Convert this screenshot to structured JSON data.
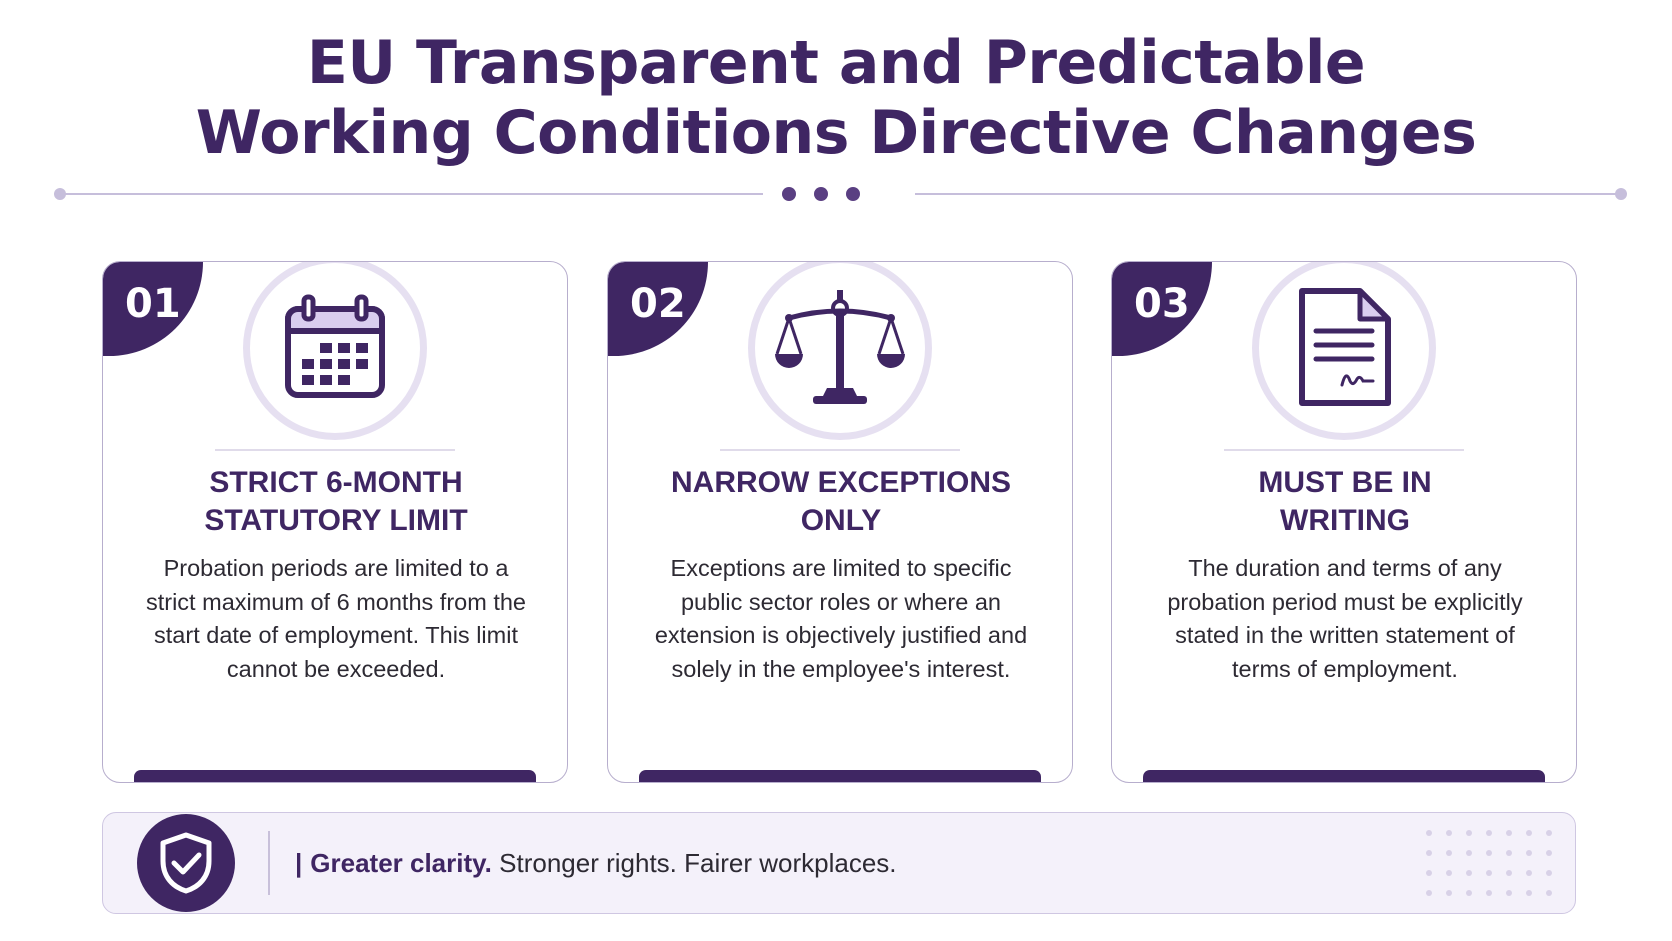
{
  "header": {
    "title_line1": "EU Transparent and Predictable",
    "title_line2": "Working Conditions Directive Changes"
  },
  "cards": [
    {
      "number": "01",
      "icon": "calendar-icon",
      "title_line1": "STRICT 6-MONTH",
      "title_line2": "STATUTORY LIMIT",
      "description": "Probation periods are limited to a strict maximum of 6 months from the start date of employment. This limit cannot be exceeded."
    },
    {
      "number": "02",
      "icon": "scales-icon",
      "title_line1": "NARROW EXCEPTIONS",
      "title_line2": "ONLY",
      "description": "Exceptions are limited to specific public sector roles or where an extension is objectively justified and solely in the employee's interest."
    },
    {
      "number": "03",
      "icon": "signed-document-icon",
      "title_line1": "MUST BE IN",
      "title_line2": "WRITING",
      "description": "The duration and terms of any probation period must be explicitly stated in the written statement of terms of employment."
    }
  ],
  "footer": {
    "icon": "shield-check-icon",
    "tagline_bold": "Greater clarity.",
    "tagline_rest": "Stronger rights. Fairer workplaces."
  },
  "colors": {
    "primary": "#3f2663",
    "ring": "#e6e0f1",
    "footer_bg": "#f4f1fa",
    "divider": "#c6bedb"
  }
}
